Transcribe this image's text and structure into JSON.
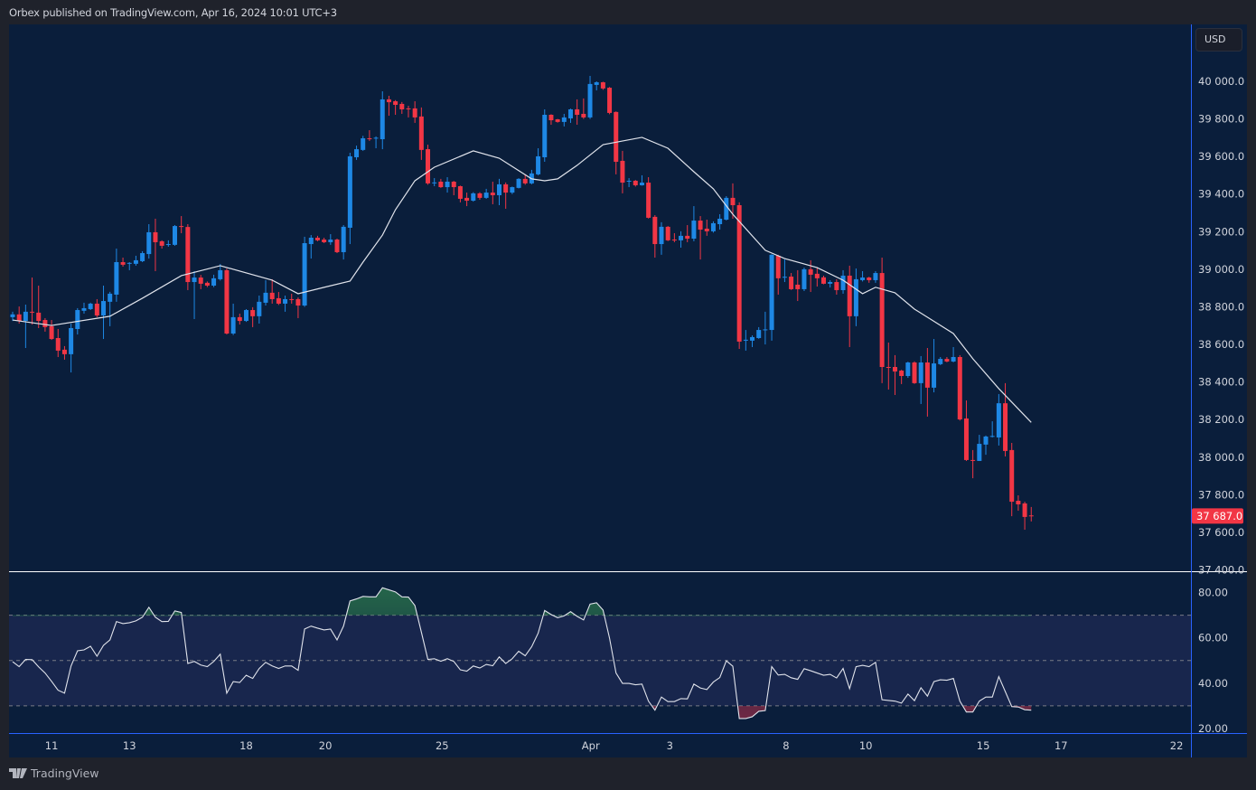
{
  "header": {
    "published_text": "Orbex published on TradingView.com, Apr 16, 2024 10:01 UTC+3"
  },
  "currency_button": "USD",
  "branding": {
    "logo_text": "TradingView"
  },
  "colors": {
    "background": "#0a1e3b",
    "up": "#1e88e5",
    "down": "#f23645",
    "ma_line": "#e0e3eb",
    "rsi_line": "#e0e3eb",
    "rsi_band": "#18264d",
    "axis_line": "#2962ff"
  },
  "last_price": {
    "label": "37 687.0",
    "value": 37687
  },
  "chart_data": [
    {
      "type": "candlestick",
      "title": "",
      "ylim": [
        37393,
        40303
      ],
      "grid": false,
      "price_ticks": [
        40000,
        39800,
        39600,
        39400,
        39200,
        39000,
        38800,
        38600,
        38400,
        38200,
        38000,
        37800,
        37600,
        37400
      ],
      "price_tick_labels": [
        "40 000.0",
        "39 800.0",
        "39 600.0",
        "39 400.0",
        "39 200.0",
        "39 000.0",
        "38 800.0",
        "38 600.0",
        "38 400.0",
        "38 200.0",
        "38 000.0",
        "37 800.0",
        "37 600.0",
        "37 400.0"
      ],
      "time_labels": [
        "11",
        "13",
        "18",
        "20",
        "25",
        "Apr",
        "3",
        "8",
        "10",
        "15",
        "17",
        "22"
      ],
      "candles_ohlc": [
        [
          38745,
          38774,
          38725,
          38760
        ],
        [
          38760,
          38802,
          38711,
          38725
        ],
        [
          38725,
          38812,
          38581,
          38774
        ],
        [
          38774,
          38956,
          38706,
          38770
        ],
        [
          38769,
          38913,
          38687,
          38725
        ],
        [
          38730,
          38740,
          38668,
          38692
        ],
        [
          38697,
          38730,
          38624,
          38629
        ],
        [
          38634,
          38682,
          38533,
          38567
        ],
        [
          38572,
          38591,
          38519,
          38548
        ],
        [
          38548,
          38711,
          38451,
          38687
        ],
        [
          38682,
          38793,
          38653,
          38783
        ],
        [
          38779,
          38822,
          38764,
          38793
        ],
        [
          38788,
          38822,
          38783,
          38817
        ],
        [
          38817,
          38841,
          38745,
          38754
        ],
        [
          38754,
          38913,
          38629,
          38831
        ],
        [
          38827,
          38880,
          38697,
          38870
        ],
        [
          38865,
          39110,
          38827,
          39038
        ],
        [
          39038,
          39062,
          39014,
          39024
        ],
        [
          39029,
          39038,
          38995,
          39034
        ],
        [
          39029,
          39072,
          39019,
          39048
        ],
        [
          39043,
          39096,
          39038,
          39086
        ],
        [
          39081,
          39240,
          39057,
          39197
        ],
        [
          39197,
          39269,
          38990,
          39144
        ],
        [
          39149,
          39154,
          39110,
          39125
        ],
        [
          39130,
          39154,
          39120,
          39134
        ],
        [
          39130,
          39235,
          39125,
          39230
        ],
        [
          39230,
          39283,
          39192,
          39225
        ],
        [
          39225,
          39240,
          38889,
          38932
        ],
        [
          38932,
          38990,
          38735,
          38956
        ],
        [
          38956,
          38970,
          38894,
          38923
        ],
        [
          38928,
          38935,
          38905,
          38913
        ],
        [
          38913,
          38971,
          38905,
          38952
        ],
        [
          38947,
          39028,
          38940,
          38995
        ],
        [
          38995,
          39004,
          38653,
          38658
        ],
        [
          38658,
          38817,
          38650,
          38745
        ],
        [
          38745,
          38764,
          38706,
          38725
        ],
        [
          38725,
          38788,
          38720,
          38783
        ],
        [
          38783,
          38798,
          38692,
          38750
        ],
        [
          38750,
          38860,
          38711,
          38827
        ],
        [
          38822,
          38942,
          38807,
          38875
        ],
        [
          38875,
          38947,
          38817,
          38841
        ],
        [
          38846,
          38879,
          38810,
          38817
        ],
        [
          38817,
          38860,
          38774,
          38841
        ],
        [
          38841,
          38870,
          38817,
          38838
        ],
        [
          38841,
          38850,
          38740,
          38807
        ],
        [
          38807,
          39173,
          38800,
          39139
        ],
        [
          39134,
          39182,
          39057,
          39168
        ],
        [
          39168,
          39178,
          39149,
          39154
        ],
        [
          39158,
          39168,
          39139,
          39144
        ],
        [
          39144,
          39187,
          39130,
          39158
        ],
        [
          39158,
          39163,
          39086,
          39091
        ],
        [
          39091,
          39235,
          39052,
          39226
        ],
        [
          39221,
          39620,
          39134,
          39601
        ],
        [
          39596,
          39658,
          39582,
          39639
        ],
        [
          39635,
          39710,
          39630,
          39697
        ],
        [
          39697,
          39740,
          39683,
          39692
        ],
        [
          39697,
          39707,
          39644,
          39700
        ],
        [
          39692,
          39947,
          39639,
          39904
        ],
        [
          39904,
          39923,
          39817,
          39889
        ],
        [
          39894,
          39900,
          39822,
          39875
        ],
        [
          39880,
          39890,
          39827,
          39851
        ],
        [
          39856,
          39870,
          39808,
          39853
        ],
        [
          39856,
          39894,
          39779,
          39808
        ],
        [
          39813,
          39861,
          39582,
          39635
        ],
        [
          39639,
          39663,
          39450,
          39457
        ],
        [
          39460,
          39485,
          39442,
          39462
        ],
        [
          39466,
          39481,
          39433,
          39437
        ],
        [
          39437,
          39490,
          39408,
          39466
        ],
        [
          39466,
          39470,
          39394,
          39437
        ],
        [
          39442,
          39445,
          39356,
          39375
        ],
        [
          39380,
          39408,
          39336,
          39365
        ],
        [
          39365,
          39410,
          39360,
          39404
        ],
        [
          39404,
          39410,
          39370,
          39380
        ],
        [
          39380,
          39428,
          39375,
          39408
        ],
        [
          39408,
          39466,
          39346,
          39394
        ],
        [
          39394,
          39481,
          39341,
          39452
        ],
        [
          39452,
          39462,
          39322,
          39408
        ],
        [
          39408,
          39440,
          39400,
          39437
        ],
        [
          39433,
          39485,
          39430,
          39481
        ],
        [
          39481,
          39505,
          39450,
          39457
        ],
        [
          39457,
          39529,
          39452,
          39510
        ],
        [
          39505,
          39644,
          39500,
          39601
        ],
        [
          39596,
          39851,
          39572,
          39822
        ],
        [
          39822,
          39825,
          39769,
          39793
        ],
        [
          39798,
          39800,
          39780,
          39784
        ],
        [
          39784,
          39827,
          39760,
          39808
        ],
        [
          39803,
          39855,
          39779,
          39851
        ],
        [
          39851,
          39904,
          39769,
          39822
        ],
        [
          39827,
          39909,
          39800,
          39808
        ],
        [
          39808,
          40029,
          39800,
          39986
        ],
        [
          39981,
          40000,
          39952,
          39995
        ],
        [
          39995,
          39998,
          39955,
          39962
        ],
        [
          39966,
          39970,
          39825,
          39832
        ],
        [
          39837,
          39840,
          39505,
          39572
        ],
        [
          39577,
          39630,
          39404,
          39461
        ],
        [
          39470,
          39485,
          39437,
          39471
        ],
        [
          39471,
          39475,
          39440,
          39447
        ],
        [
          39447,
          39500,
          39445,
          39461
        ],
        [
          39461,
          39490,
          39270,
          39274
        ],
        [
          39279,
          39288,
          39062,
          39134
        ],
        [
          39134,
          39250,
          39077,
          39226
        ],
        [
          39226,
          39230,
          39150,
          39154
        ],
        [
          39158,
          39192,
          39144,
          39155
        ],
        [
          39154,
          39202,
          39115,
          39178
        ],
        [
          39178,
          39235,
          39144,
          39163
        ],
        [
          39163,
          39336,
          39149,
          39259
        ],
        [
          39259,
          39283,
          39052,
          39211
        ],
        [
          39216,
          39264,
          39178,
          39202
        ],
        [
          39202,
          39255,
          39195,
          39245
        ],
        [
          39240,
          39293,
          39211,
          39269
        ],
        [
          39264,
          39389,
          39260,
          39380
        ],
        [
          39380,
          39457,
          39269,
          39341
        ],
        [
          39341,
          39356,
          38576,
          38615
        ],
        [
          38620,
          38677,
          38567,
          38625
        ],
        [
          38620,
          38648,
          38586,
          38639
        ],
        [
          38634,
          38692,
          38630,
          38677
        ],
        [
          38677,
          38774,
          38600,
          38680
        ],
        [
          38677,
          39080,
          38620,
          39077
        ],
        [
          39072,
          39077,
          38865,
          38952
        ],
        [
          38956,
          39052,
          38932,
          38960
        ],
        [
          38961,
          38980,
          38890,
          38894
        ],
        [
          38918,
          38995,
          38831,
          38894
        ],
        [
          38894,
          39009,
          38884,
          39000
        ],
        [
          39000,
          39048,
          38879,
          38971
        ],
        [
          38976,
          39009,
          38908,
          38952
        ],
        [
          38957,
          38966,
          38920,
          38923
        ],
        [
          38923,
          38942,
          38903,
          38932
        ],
        [
          38932,
          38947,
          38865,
          38889
        ],
        [
          38889,
          38995,
          38870,
          38966
        ],
        [
          38966,
          39019,
          38586,
          38750
        ],
        [
          38750,
          39004,
          38697,
          38947
        ],
        [
          38942,
          38990,
          38935,
          38956
        ],
        [
          38956,
          38960,
          38928,
          38942
        ],
        [
          38942,
          38990,
          38928,
          38980
        ],
        [
          38980,
          39062,
          38394,
          38480
        ],
        [
          38480,
          38610,
          38360,
          38478
        ],
        [
          38480,
          38543,
          38331,
          38456
        ],
        [
          38461,
          38465,
          38389,
          38432
        ],
        [
          38432,
          38508,
          38422,
          38504
        ],
        [
          38504,
          38510,
          38390,
          38394
        ],
        [
          38394,
          38538,
          38283,
          38504
        ],
        [
          38504,
          38581,
          38216,
          38370
        ],
        [
          38370,
          38629,
          38345,
          38499
        ],
        [
          38495,
          38533,
          38490,
          38523
        ],
        [
          38523,
          38533,
          38505,
          38509
        ],
        [
          38509,
          38586,
          38505,
          38533
        ],
        [
          38533,
          38543,
          38195,
          38201
        ],
        [
          38206,
          38302,
          37980,
          37985
        ],
        [
          37985,
          38038,
          37888,
          37983
        ],
        [
          37980,
          38119,
          37980,
          38071
        ],
        [
          38067,
          38115,
          38013,
          38110
        ],
        [
          38110,
          38191,
          38105,
          38113
        ],
        [
          38105,
          38336,
          38062,
          38287
        ],
        [
          38287,
          38394,
          38004,
          38033
        ],
        [
          38038,
          38076,
          37686,
          37763
        ],
        [
          37768,
          37797,
          37715,
          37749
        ],
        [
          37754,
          37763,
          37614,
          37682
        ],
        [
          37690,
          37735,
          37658,
          37687
        ]
      ],
      "moving_average_points": [
        [
          1,
          38730
        ],
        [
          7,
          38701
        ],
        [
          16,
          38750
        ],
        [
          21,
          38846
        ],
        [
          27,
          38966
        ],
        [
          33,
          39019
        ],
        [
          41,
          38942
        ],
        [
          45,
          38870
        ],
        [
          49,
          38904
        ],
        [
          53,
          38937
        ],
        [
          55,
          39038
        ],
        [
          58,
          39182
        ],
        [
          60,
          39317
        ],
        [
          63,
          39471
        ],
        [
          66,
          39543
        ],
        [
          72,
          39630
        ],
        [
          76,
          39591
        ],
        [
          81,
          39481
        ],
        [
          83,
          39471
        ],
        [
          85,
          39481
        ],
        [
          88,
          39553
        ],
        [
          92,
          39663
        ],
        [
          98,
          39702
        ],
        [
          102,
          39644
        ],
        [
          106,
          39519
        ],
        [
          109,
          39428
        ],
        [
          112,
          39293
        ],
        [
          117,
          39101
        ],
        [
          120,
          39057
        ],
        [
          125,
          39009
        ],
        [
          129,
          38942
        ],
        [
          132,
          38870
        ],
        [
          134,
          38904
        ],
        [
          137,
          38875
        ],
        [
          140,
          38788
        ],
        [
          146,
          38658
        ],
        [
          149,
          38524
        ],
        [
          153,
          38365
        ],
        [
          158,
          38185
        ]
      ]
    },
    {
      "type": "line",
      "title": "",
      "ylim": [
        18,
        89
      ],
      "levels": [
        70,
        50,
        30
      ],
      "ticks": [
        80,
        60,
        40,
        20
      ],
      "tick_labels": [
        "80.00",
        "60.00",
        "40.00",
        "20.00"
      ],
      "values": [
        49.5,
        47.3,
        50.5,
        50.4,
        47.2,
        44.5,
        40.8,
        36.9,
        35.6,
        47.6,
        54.3,
        54.7,
        56.3,
        51.9,
        56.7,
        59.1,
        67.2,
        66.3,
        66.7,
        67.5,
        69.1,
        73.5,
        69.1,
        67.2,
        67.3,
        71.9,
        71.2,
        48.7,
        49.6,
        48,
        47.3,
        49.6,
        52.8,
        35.6,
        40.7,
        40.3,
        43.5,
        42.1,
        46.5,
        49.2,
        47.6,
        46.5,
        47.6,
        47.6,
        45.7,
        63.9,
        65.2,
        64.3,
        63.5,
        63.9,
        59.1,
        65.2,
        76.3,
        77.2,
        78.3,
        78.1,
        78.1,
        82.1,
        81.2,
        80.3,
        78.1,
        78,
        74.3,
        62.5,
        50.5,
        50.8,
        49.7,
        50.8,
        49.6,
        45.9,
        45.3,
        47.6,
        46.7,
        48.3,
        47.7,
        51.6,
        48.7,
        50.8,
        54.1,
        52.1,
        56.1,
        62.1,
        72.1,
        70.3,
        68.9,
        69.7,
        71.6,
        69.5,
        67.9,
        74.9,
        75.5,
        72.3,
        59.9,
        44.5,
        39.9,
        39.9,
        39.3,
        39.6,
        32.1,
        28.1,
        33.9,
        31.9,
        31.9,
        33.2,
        33.1,
        39.6,
        37.9,
        37.2,
        40.5,
        42.5,
        49.9,
        47.5,
        24.4,
        24.4,
        25.2,
        27.6,
        27.9,
        47.3,
        43.6,
        43.9,
        42.4,
        41.7,
        46.4,
        45.5,
        44.5,
        43.5,
        43.9,
        42.3,
        46.5,
        37.6,
        47.3,
        47.9,
        47.3,
        49.2,
        32.7,
        32.4,
        32.1,
        31.2,
        35.2,
        32.3,
        38,
        34.3,
        40.7,
        41.5,
        41.3,
        42.1,
        32.1,
        27.3,
        27.3,
        32.1,
        33.9,
        33.9,
        42.9,
        36.3,
        29.7,
        29.5,
        28.3,
        28.1
      ]
    }
  ]
}
